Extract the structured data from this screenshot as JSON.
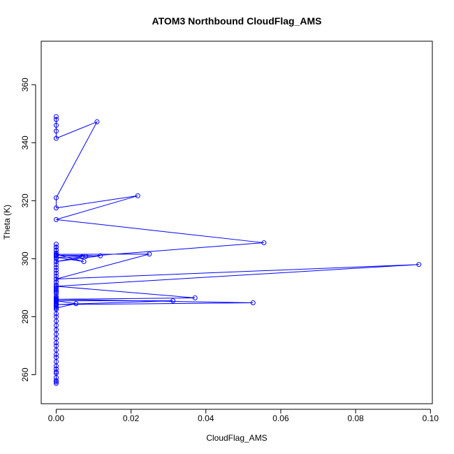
{
  "chart_data": {
    "type": "line",
    "title": "ATOM3 Northbound CloudFlag_AMS",
    "xlabel": "CloudFlag_AMS",
    "ylabel": "Theta (K)",
    "xlim": [
      -0.004,
      0.1005
    ],
    "ylim": [
      250,
      375
    ],
    "xticks": [
      0.0,
      0.02,
      0.04,
      0.06,
      0.08,
      0.1
    ],
    "xtick_labels": [
      "0.00",
      "0.02",
      "0.04",
      "0.06",
      "0.08",
      "0.10"
    ],
    "yticks": [
      260,
      280,
      300,
      320,
      340,
      360
    ],
    "ytick_labels": [
      "260",
      "280",
      "300",
      "320",
      "340",
      "360"
    ],
    "grid": false,
    "legend": "none",
    "color": "#0000ff",
    "marker": "open-circle",
    "series": [
      {
        "x": [
          0,
          0,
          0,
          0,
          0,
          0,
          0,
          0,
          0,
          0,
          0,
          0,
          0,
          0,
          0,
          0,
          0,
          0,
          0,
          0,
          0,
          0,
          0,
          0,
          0,
          0,
          0,
          0,
          0,
          0,
          0,
          0,
          0,
          0,
          0,
          0,
          0,
          0,
          0,
          0,
          0,
          0,
          0,
          0,
          0,
          0,
          0,
          0,
          0,
          0,
          0,
          0,
          0,
          0,
          0,
          0,
          0,
          0,
          0,
          0.0053,
          0,
          0.0312,
          0,
          0.0526,
          0,
          0.0371,
          0,
          0.0969,
          0,
          0.0249,
          0,
          0.0074,
          0,
          0.0069,
          0,
          0.0118,
          0,
          0.0079,
          0.0555,
          0,
          0.0218,
          0,
          0,
          0.0109,
          0,
          0,
          0,
          0,
          0
        ],
        "y": [
          257,
          257.5,
          258,
          259,
          260.5,
          261,
          262,
          263,
          264.5,
          266,
          267,
          268.5,
          270,
          271,
          272.5,
          274,
          275.5,
          277,
          278.5,
          280,
          281,
          282.5,
          283,
          284.5,
          284,
          283.5,
          284,
          284.5,
          285,
          285.2,
          285.5,
          285.8,
          286,
          286.2,
          286.5,
          287,
          288,
          288.5,
          289,
          289.5,
          290,
          291,
          292,
          293,
          294,
          295,
          296,
          297,
          298,
          299,
          300,
          301,
          302,
          303,
          304,
          305,
          304,
          303,
          283,
          284.5,
          285.5,
          285.5,
          284.2,
          284.8,
          286,
          286.5,
          290.5,
          298,
          293,
          301.6,
          301.5,
          299,
          300.5,
          300.6,
          299,
          301,
          301.2,
          300.8,
          305.5,
          313.5,
          321.7,
          317.5,
          321,
          347.2,
          341.5,
          344,
          346,
          348,
          349
        ]
      }
    ]
  }
}
